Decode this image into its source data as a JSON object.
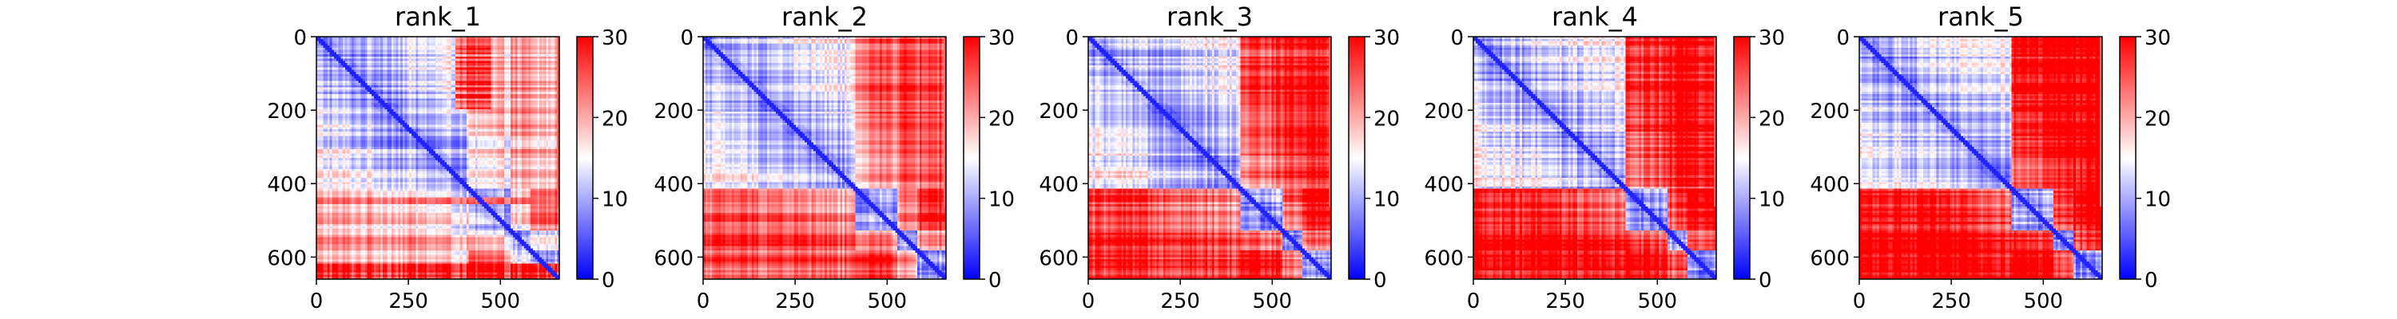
{
  "chart_data": {
    "type": "heatmap",
    "panels": [
      {
        "title": "rank_1"
      },
      {
        "title": "rank_2"
      },
      {
        "title": "rank_3"
      },
      {
        "title": "rank_4"
      },
      {
        "title": "rank_5"
      }
    ],
    "matrix_size": 660,
    "x_ticks": [
      0,
      250,
      500
    ],
    "y_ticks": [
      0,
      200,
      400,
      600
    ],
    "xlim": [
      0,
      660
    ],
    "ylim": [
      660,
      0
    ],
    "colorbar": {
      "range": [
        0,
        30
      ],
      "ticks": [
        0,
        10,
        20,
        30
      ],
      "colormap": "bwr",
      "colors": {
        "low": "#0000ff",
        "mid": "#ffffff",
        "high": "#ff0000"
      }
    },
    "tick_labels": {
      "x": [
        "0",
        "250",
        "500"
      ],
      "y": [
        "0",
        "200",
        "400",
        "600"
      ],
      "colorbar": [
        "0",
        "10",
        "20",
        "30"
      ]
    },
    "grid": false
  }
}
